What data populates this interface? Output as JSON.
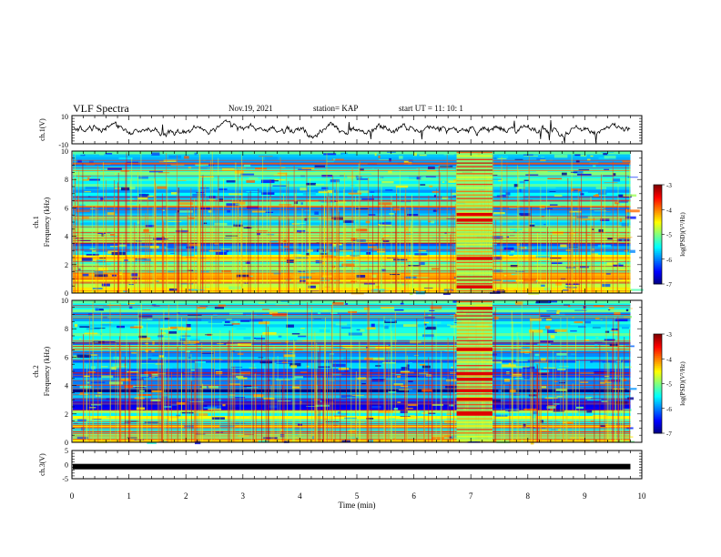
{
  "header": {
    "title": "VLF Spectra",
    "date": "Nov.19, 2021",
    "station": "station= KAP",
    "start_time": "start UT =   11: 10: 1"
  },
  "chart_data": [
    {
      "type": "line",
      "name": "ch1-waveform",
      "ylabel": "ch.1(V)",
      "ylim": [
        -10,
        10
      ],
      "yticks": [
        "10",
        "-10"
      ],
      "xlim": [
        0,
        10
      ],
      "x_end": 9.8,
      "color": "#000000"
    },
    {
      "type": "heatmap",
      "name": "ch1-spectrogram",
      "ylabel_line1": "ch.1",
      "ylabel_line2": "Frequency (kHz)",
      "ylim": [
        0,
        10
      ],
      "yticks": [
        "0",
        "2",
        "4",
        "6",
        "8",
        "10"
      ],
      "xlim": [
        0,
        10
      ],
      "x_end": 9.8,
      "burst_minutes": [
        6.75,
        7.38
      ],
      "colorbar": {
        "label": "log(PSD)(V²/Hz)",
        "range": [
          -7,
          -3
        ],
        "ticks": [
          "-3",
          "-4",
          "-5",
          "-6",
          "-7"
        ]
      }
    },
    {
      "type": "heatmap",
      "name": "ch2-spectrogram",
      "ylabel_line1": "ch.2",
      "ylabel_line2": "Frequency (kHz)",
      "ylim": [
        0,
        10
      ],
      "yticks": [
        "0",
        "2",
        "4",
        "6",
        "8",
        "10"
      ],
      "xlim": [
        0,
        10
      ],
      "x_end": 9.8,
      "burst_minutes": [
        6.75,
        7.38
      ],
      "colorbar": {
        "label": "log(PSD)(V²/Hz)",
        "range": [
          -7,
          -3
        ],
        "ticks": [
          "-3",
          "-4",
          "-5",
          "-6",
          "-7"
        ]
      }
    },
    {
      "type": "line",
      "name": "ch3-signal",
      "ylabel": "ch.3(V)",
      "ylim": [
        -5,
        5
      ],
      "yticks": [
        "5",
        "0",
        "-5"
      ],
      "xlim": [
        0,
        10
      ],
      "x_end": 9.8,
      "level": -0.7,
      "color": "#000000"
    }
  ],
  "xaxis": {
    "label": "Time (min)",
    "ticks": [
      "0",
      "1",
      "2",
      "3",
      "4",
      "5",
      "6",
      "7",
      "8",
      "9",
      "10"
    ]
  }
}
